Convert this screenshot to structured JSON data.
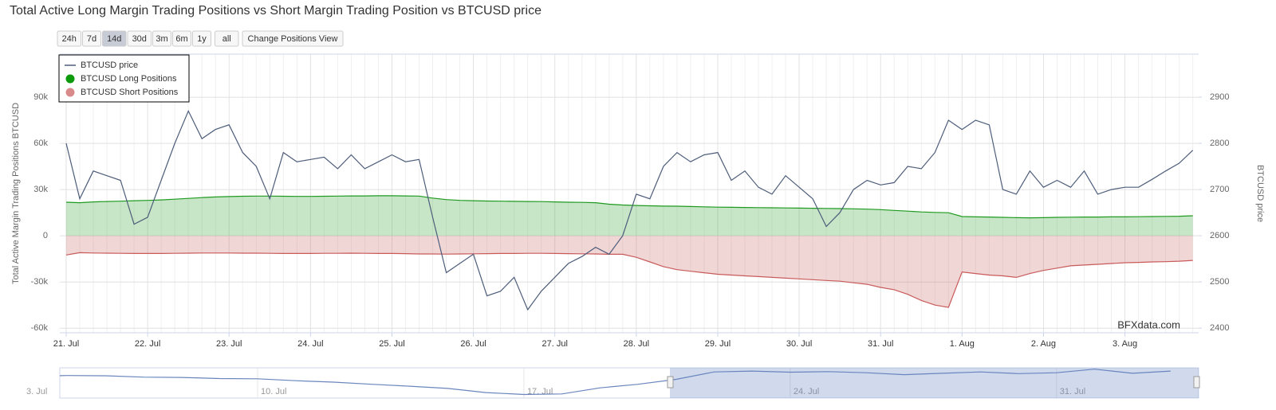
{
  "chart_data": {
    "type": "line",
    "title": "Total Active Long Margin Trading Positions vs Short Margin Trading Position vs BTCUSD price",
    "range_buttons": [
      "24h",
      "7d",
      "14d",
      "30d",
      "3m",
      "6m",
      "1y",
      "all"
    ],
    "selected_range": "14d",
    "view_button": "Change Positions View",
    "y_axis_label": "Total Active Margin Trading Positions BTCUSD",
    "y2_axis_label": "BTCUSD price",
    "credit": "BFXdata.com",
    "legend": "top-left",
    "grid": true,
    "categories": [
      "21. Jul",
      null,
      null,
      null,
      null,
      null,
      "22. Jul",
      null,
      null,
      null,
      null,
      null,
      "23. Jul",
      null,
      null,
      null,
      null,
      null,
      "24. Jul",
      null,
      null,
      null,
      null,
      null,
      "25. Jul",
      null,
      null,
      null,
      null,
      null,
      "26. Jul",
      null,
      null,
      null,
      null,
      null,
      "27. Jul",
      null,
      null,
      null,
      null,
      null,
      "28. Jul",
      null,
      null,
      null,
      null,
      null,
      "29. Jul",
      null,
      null,
      null,
      null,
      null,
      "30. Jul",
      null,
      null,
      null,
      null,
      null,
      "31. Jul",
      null,
      null,
      null,
      null,
      null,
      "1. Aug",
      null,
      null,
      null,
      null,
      null,
      "2. Aug",
      null,
      null,
      null,
      null,
      null,
      "3. Aug",
      null,
      null,
      null,
      null,
      null
    ],
    "ylim": [
      -63000,
      118000
    ],
    "yticks": [
      {
        "value": 90000,
        "label": "90k"
      },
      {
        "value": 60000,
        "label": "60k"
      },
      {
        "value": 30000,
        "label": "30k"
      },
      0,
      {
        "value": -30000,
        "label": "-30k"
      },
      {
        "value": -60000,
        "label": "-60k"
      }
    ],
    "y2lim": [
      2390,
      2993
    ],
    "y2ticks": [
      2900,
      2800,
      2700,
      2600,
      2500,
      2400
    ],
    "series": [
      {
        "name": "BTCUSD price",
        "type": "line",
        "axis": "y2",
        "color": "#4d5d7a",
        "values": [
          2800,
          2680,
          2740,
          2730,
          2720,
          2625,
          2640,
          2720,
          2800,
          2870,
          2810,
          2830,
          2840,
          2780,
          2750,
          2680,
          2780,
          2760,
          2765,
          2770,
          2745,
          2775,
          2745,
          2760,
          2775,
          2760,
          2765,
          2640,
          2520,
          2540,
          2560,
          2470,
          2480,
          2510,
          2440,
          2480,
          2510,
          2540,
          2555,
          2575,
          2560,
          2600,
          2690,
          2680,
          2750,
          2780,
          2760,
          2775,
          2780,
          2720,
          2740,
          2705,
          2690,
          2730,
          2705,
          2680,
          2620,
          2650,
          2700,
          2720,
          2710,
          2715,
          2750,
          2745,
          2780,
          2850,
          2830,
          2850,
          2840,
          2700,
          2690,
          2740,
          2705,
          2720,
          2705,
          2740,
          2690,
          2700,
          2705,
          2705,
          2722,
          2740,
          2757,
          2785
        ]
      },
      {
        "name": "BTCUSD Long Positions",
        "type": "area",
        "color": "#1f9a1f",
        "values": [
          21800,
          21500,
          22000,
          22300,
          22500,
          22800,
          23000,
          23300,
          23800,
          24300,
          24800,
          25200,
          25500,
          25700,
          25800,
          25800,
          25700,
          25600,
          25600,
          25700,
          25800,
          25900,
          25900,
          26000,
          26000,
          25900,
          25800,
          24500,
          23500,
          23000,
          22800,
          22600,
          22500,
          22400,
          22300,
          22200,
          22000,
          21800,
          21700,
          21500,
          20500,
          20000,
          19700,
          19500,
          19300,
          19200,
          19000,
          18800,
          18600,
          18500,
          18400,
          18300,
          18200,
          18100,
          18000,
          17900,
          17800,
          17700,
          17500,
          17300,
          17000,
          16500,
          16000,
          15500,
          15200,
          15000,
          12500,
          12300,
          12200,
          12000,
          11800,
          11700,
          11800,
          12000,
          12100,
          12200,
          12200,
          12300,
          12300,
          12400,
          12500,
          12600,
          12700,
          13000
        ]
      },
      {
        "name": "BTCUSD Short Positions",
        "type": "area",
        "color": "#c85a5a",
        "values": [
          -12500,
          -11000,
          -11200,
          -11300,
          -11400,
          -11500,
          -11500,
          -11500,
          -11400,
          -11300,
          -11200,
          -11200,
          -11200,
          -11300,
          -11300,
          -11400,
          -11500,
          -11500,
          -11500,
          -11400,
          -11400,
          -11300,
          -11400,
          -11500,
          -11500,
          -11600,
          -11800,
          -11800,
          -11900,
          -11800,
          -11700,
          -11600,
          -11500,
          -11500,
          -11400,
          -11400,
          -11500,
          -11600,
          -11700,
          -11800,
          -12000,
          -12000,
          -14000,
          -17000,
          -20000,
          -22000,
          -23000,
          -24000,
          -25000,
          -25500,
          -26000,
          -26500,
          -27000,
          -27500,
          -28000,
          -28500,
          -29000,
          -29500,
          -30500,
          -31500,
          -33500,
          -35000,
          -38000,
          -42000,
          -45000,
          -46500,
          -23500,
          -24500,
          -25500,
          -26000,
          -27000,
          -24500,
          -22500,
          -21000,
          -19500,
          -19000,
          -18500,
          -18000,
          -17500,
          -17300,
          -17000,
          -16800,
          -16500,
          -16000
        ]
      }
    ],
    "navigator": {
      "color": "#6a86bd",
      "categories": [
        "3. Jul",
        null,
        null,
        null,
        null,
        null,
        null,
        "10. Jul",
        null,
        null,
        null,
        null,
        null,
        null,
        "17. Jul",
        null,
        null,
        null,
        null,
        null,
        null,
        "24. Jul",
        null,
        null,
        null,
        null,
        null,
        null,
        "31. Jul",
        null,
        null,
        null
      ],
      "values": [
        2560,
        2600,
        2620,
        2610,
        2560,
        2550,
        2510,
        2500,
        2430,
        2380,
        2300,
        2230,
        2150,
        2000,
        1930,
        1950,
        2170,
        2300,
        2480,
        2750,
        2780,
        2740,
        2760,
        2720,
        2650,
        2700,
        2750,
        2690,
        2720,
        2850,
        2700,
        2780
      ],
      "ylim": [
        1800,
        2900
      ]
    }
  }
}
